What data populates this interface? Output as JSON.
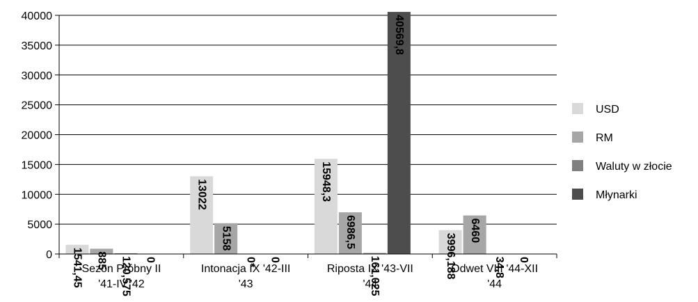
{
  "chart_data": {
    "type": "bar",
    "categories": [
      [
        "Sezon Próbny II",
        "'41-IV '42"
      ],
      [
        "Intonacja IX '42-III",
        "'43"
      ],
      [
        "Riposta IX '43-VII",
        "'44"
      ],
      [
        "Odwet VIII '44-XII",
        "'44"
      ]
    ],
    "series": [
      {
        "name": "USD",
        "color": "#d9d9d9",
        "values": [
          1541.45,
          13022,
          15948.3,
          3996.188
        ],
        "labels": [
          "1541,45",
          "13022",
          "15948,3",
          "3996,188"
        ]
      },
      {
        "name": "RM",
        "color": "#a6a6a6",
        "values": [
          885,
          5158,
          6986.5,
          6460
        ],
        "labels": [
          "885",
          "5158",
          "6986,5",
          "6460"
        ]
      },
      {
        "name": "Waluty w złocie",
        "color": "#808080",
        "values": [
          120.575,
          0,
          161.025,
          34.8
        ],
        "labels": [
          "120,575",
          "0*",
          "161,025",
          "34,8"
        ]
      },
      {
        "name": "Młynarki",
        "color": "#4d4d4d",
        "values": [
          0,
          0,
          40569.8,
          0
        ],
        "labels": [
          "0",
          "0",
          "40569,8",
          "0"
        ]
      }
    ],
    "ylim": [
      0,
      40000
    ],
    "yticks": [
      "0",
      "5000",
      "10000",
      "15000",
      "20000",
      "25000",
      "30000",
      "35000",
      "40000"
    ],
    "grid": true,
    "legend_position": "right"
  }
}
